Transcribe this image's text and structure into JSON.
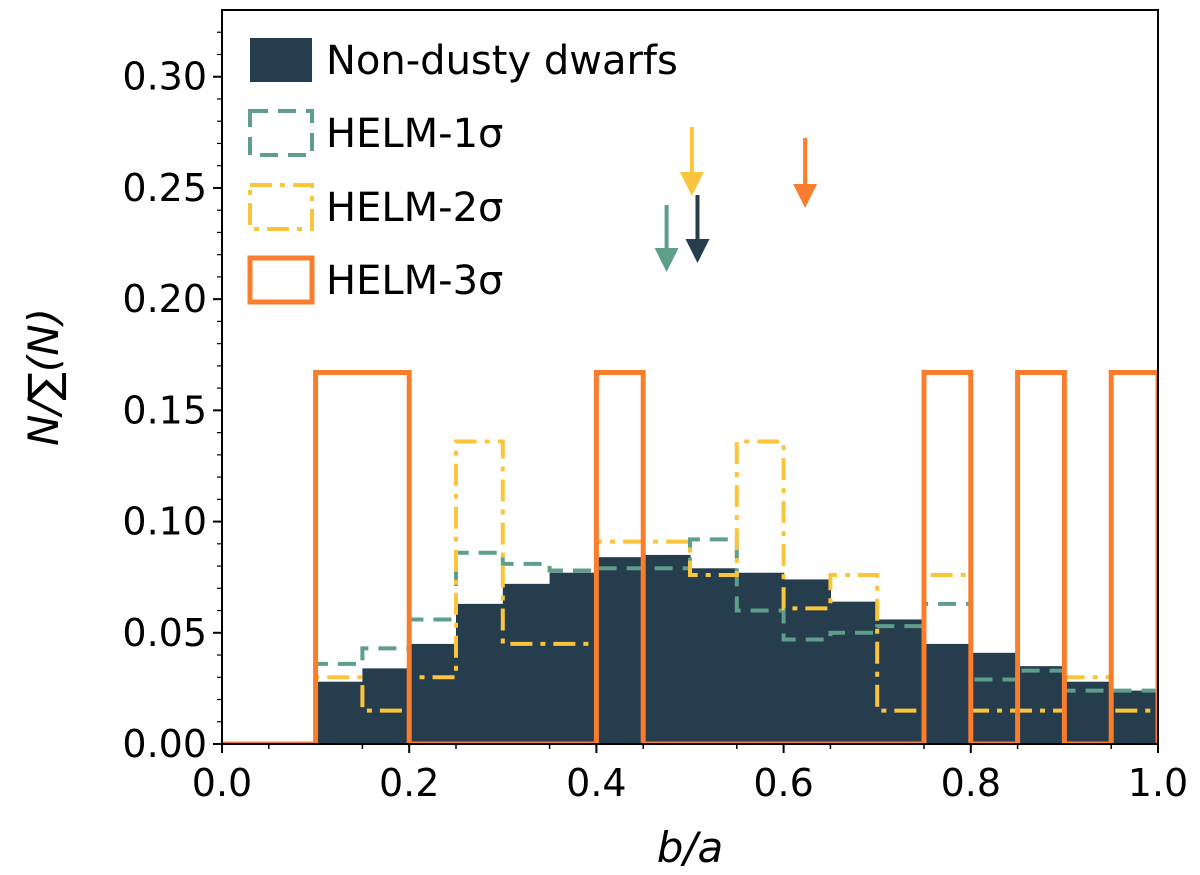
{
  "chart_data": {
    "type": "histogram",
    "xlabel": "b/a",
    "ylabel": "N/∑(N)",
    "xlim": [
      0.0,
      1.0
    ],
    "ylim": [
      0.0,
      0.33
    ],
    "xticks": [
      0.0,
      0.2,
      0.4,
      0.6,
      0.8,
      1.0
    ],
    "xtick_labels": [
      "0.0",
      "0.2",
      "0.4",
      "0.6",
      "0.8",
      "1.0"
    ],
    "yticks": [
      0.0,
      0.05,
      0.1,
      0.15,
      0.2,
      0.25,
      0.3
    ],
    "ytick_labels": [
      "0.00",
      "0.05",
      "0.10",
      "0.15",
      "0.20",
      "0.25",
      "0.30"
    ],
    "bin_edges": [
      0.0,
      0.05,
      0.1,
      0.15,
      0.2,
      0.25,
      0.3,
      0.35,
      0.4,
      0.45,
      0.5,
      0.55,
      0.6,
      0.65,
      0.7,
      0.75,
      0.8,
      0.85,
      0.9,
      0.95,
      1.0
    ],
    "legend_position": "upper-left",
    "series": [
      {
        "name": "Non-dusty dwarfs",
        "legend_label": "Non-dusty dwarfs",
        "style": "filled",
        "color": "#253d4c",
        "values": [
          0.0,
          0.0,
          0.028,
          0.034,
          0.045,
          0.063,
          0.072,
          0.077,
          0.084,
          0.085,
          0.079,
          0.077,
          0.074,
          0.064,
          0.056,
          0.045,
          0.041,
          0.035,
          0.028,
          0.024
        ],
        "marker_x": 0.508
      },
      {
        "name": "HELM-1σ",
        "legend_label": "HELM-1σ",
        "style": "dashed",
        "color": "#5e9e8a",
        "values": [
          0.0,
          0.0,
          0.036,
          0.043,
          0.056,
          0.086,
          0.081,
          0.078,
          0.079,
          0.079,
          0.092,
          0.06,
          0.047,
          0.05,
          0.053,
          0.063,
          0.029,
          0.033,
          0.024,
          0.024
        ],
        "marker_x": 0.475
      },
      {
        "name": "HELM-2σ",
        "legend_label": "HELM-2σ",
        "style": "dashdot",
        "color": "#fac53c",
        "values": [
          0.0,
          0.0,
          0.03,
          0.015,
          0.03,
          0.136,
          0.045,
          0.045,
          0.091,
          0.091,
          0.076,
          0.136,
          0.061,
          0.076,
          0.015,
          0.076,
          0.015,
          0.015,
          0.03,
          0.015
        ],
        "marker_x": 0.502
      },
      {
        "name": "HELM-3σ",
        "legend_label": "HELM-3σ",
        "style": "step",
        "color": "#fa7d2d",
        "values": [
          0.0,
          0.0,
          0.167,
          0.167,
          0.0,
          0.0,
          0.0,
          0.0,
          0.167,
          0.0,
          0.0,
          0.0,
          0.0,
          0.0,
          0.0,
          0.167,
          0.0,
          0.167,
          0.0,
          0.167
        ],
        "marker_x": 0.623
      }
    ]
  }
}
